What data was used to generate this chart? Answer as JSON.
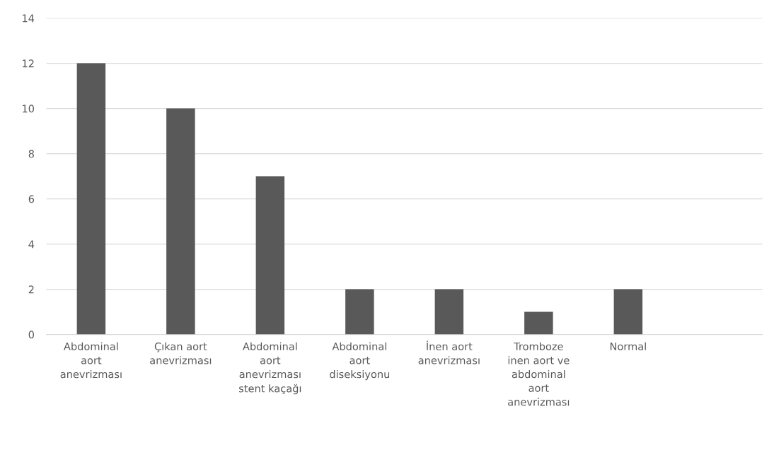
{
  "chart_data": {
    "type": "bar",
    "categories": [
      "Abdominal aort anevrizması",
      "Çıkan aort anevrizması",
      "Abdominal aort anevrizması stent kaçağı",
      "Abdominal aort diseksiyonu",
      "İnen aort anevrizması",
      "Tromboze inen aort ve abdominal aort anevrizması",
      "Normal",
      null
    ],
    "values": [
      12,
      10,
      7,
      2,
      2,
      1,
      2,
      null
    ],
    "color": "#595959",
    "ylim": [
      0,
      14
    ],
    "yticks": [
      0,
      2,
      4,
      6,
      8,
      10,
      12,
      14
    ],
    "grid": "y",
    "legend": false
  }
}
